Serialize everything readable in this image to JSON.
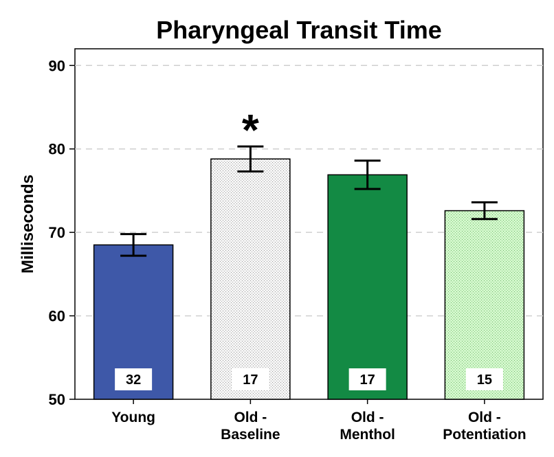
{
  "chart_data": {
    "type": "bar",
    "title": "Pharyngeal Transit Time",
    "ylabel": "Milliseconds",
    "xlabel": "",
    "ylim": [
      50,
      92
    ],
    "yticks": [
      50,
      60,
      70,
      80,
      90
    ],
    "grid": "horizontal-dashed",
    "categories": [
      {
        "lines": [
          "Young"
        ]
      },
      {
        "lines": [
          "Old -",
          "Baseline"
        ]
      },
      {
        "lines": [
          "Old -",
          "Menthol"
        ]
      },
      {
        "lines": [
          "Old -",
          "Potentiation"
        ]
      }
    ],
    "values": [
      68.5,
      78.8,
      76.9,
      72.6
    ],
    "error_low": [
      67.2,
      77.3,
      75.2,
      71.6
    ],
    "error_high": [
      69.8,
      80.3,
      78.6,
      73.6
    ],
    "n_labels": [
      "32",
      "17",
      "17",
      "15"
    ],
    "significance": [
      "",
      "*",
      "",
      ""
    ],
    "colors": [
      "#3e58a8",
      "#f2f2f2",
      "#138a44",
      "#ccf6c4"
    ],
    "patterns": [
      "solid",
      "dots",
      "solid",
      "dots"
    ]
  }
}
